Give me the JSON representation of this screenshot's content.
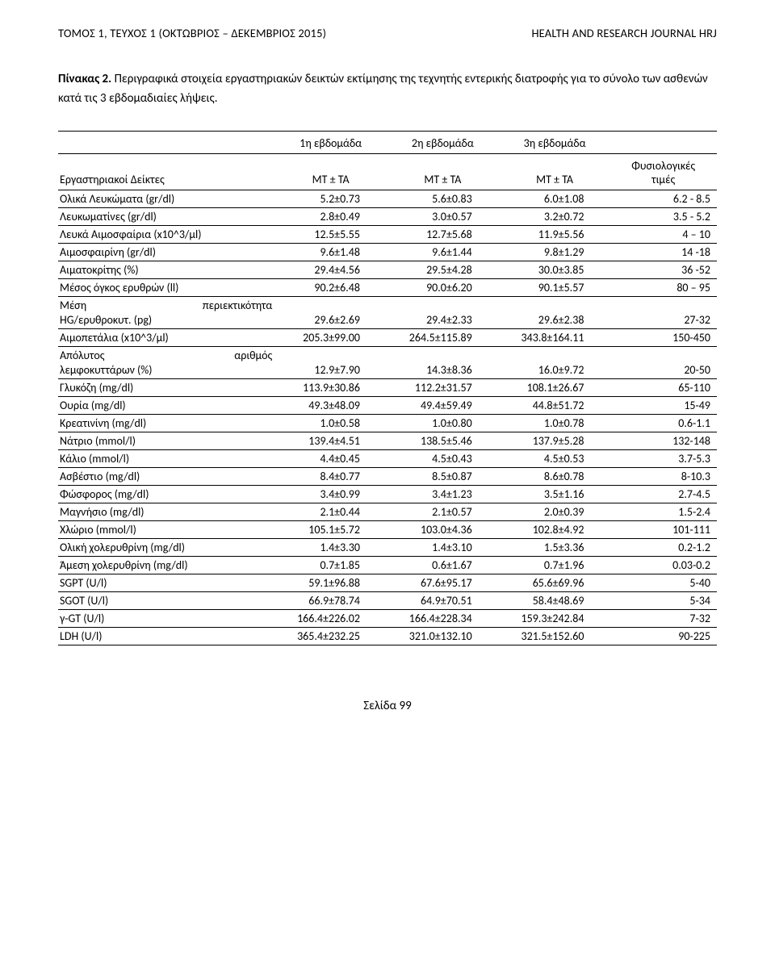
{
  "header": {
    "left": "ΤΟΜΟΣ 1, ΤΕΥΧΟΣ 1 (ΟΚΤΩΒΡΙΟΣ – ΔΕΚΕΜΒΡΙΟΣ 2015)",
    "right": "HEALTH AND RESEARCH JOURNAL HRJ"
  },
  "caption": {
    "title": "Πίνακας 2.",
    "text": " Περιγραφικά στοιχεία εργαστηριακών δεικτών εκτίμησης της τεχνητής εντερικής διατροφής για το σύνολο των ασθενών κατά τις 3 εβδομαδιαίες λήψεις."
  },
  "table": {
    "head1": {
      "c1": "1η εβδομάδα",
      "c2": "2η εβδομάδα",
      "c3": "3η εβδομάδα",
      "c4": ""
    },
    "head2": {
      "c0": "Εργαστηριακοί Δείκτες",
      "c1": "ΜΤ ± ΤΑ",
      "c2": "ΜΤ ± ΤΑ",
      "c3": "ΜΤ ± ΤΑ",
      "c4a": "Φυσιολογικές",
      "c4b": "τιμές"
    },
    "rows": [
      {
        "label": "Ολικά Λευκώματα (gr/dl)",
        "v1": "5.2±0.73",
        "v2": "5.6±0.83",
        "v3": "6.0±1.08",
        "v4": "6.2 - 8.5"
      },
      {
        "label": "Λευκωματίνες (gr/dl)",
        "v1": "2.8±0.49",
        "v2": "3.0±0.57",
        "v3": "3.2±0.72",
        "v4": "3.5 - 5.2"
      },
      {
        "label": "Λευκά Αιμοσφαίρια (x10^3/μl)",
        "v1": "12.5±5.55",
        "v2": "12.7±5.68",
        "v3": "11.9±5.56",
        "v4": "4 – 10"
      },
      {
        "label": "Αιμοσφαιρίνη (gr/dl)",
        "v1": "9.6±1.48",
        "v2": "9.6±1.44",
        "v3": "9.8±1.29",
        "v4": "14 -18"
      },
      {
        "label": "Αιματοκρίτης (%)",
        "v1": "29.4±4.56",
        "v2": "29.5±4.28",
        "v3": "30.0±3.85",
        "v4": "36 -52"
      },
      {
        "label": "Μέσος όγκος ερυθρών (ll)",
        "v1": "90.2±6.48",
        "v2": "90.0±6.20",
        "v3": "90.1±5.57",
        "v4": "80 – 95"
      },
      {
        "labelA": "Μέση",
        "labelB": "περιεκτικότητα",
        "label2": "HG/ερυθροκυτ. (pg)",
        "v1": "29.6±2.69",
        "v2": "29.4±2.33",
        "v3": "29.6±2.38",
        "v4": "27-32",
        "multi": true
      },
      {
        "label": "Αιμοπετάλια (x10^3/μl)",
        "v1": "205.3±99.00",
        "v2": "264.5±115.89",
        "v3": "343.8±164.11",
        "v4": "150-450"
      },
      {
        "labelA": "Απόλυτος",
        "labelB": "αριθμός",
        "label2": "λεμφοκυττάρων (%)",
        "v1": "12.9±7.90",
        "v2": "14.3±8.36",
        "v3": "16.0±9.72",
        "v4": "20-50",
        "multi": true
      },
      {
        "label": "Γλυκόζη (mg/dl)",
        "v1": "113.9±30.86",
        "v2": "112.2±31.57",
        "v3": "108.1±26.67",
        "v4": "65-110"
      },
      {
        "label": "Ουρία (mg/dl)",
        "v1": "49.3±48.09",
        "v2": "49.4±59.49",
        "v3": "44.8±51.72",
        "v4": "15-49"
      },
      {
        "label": "Κρεατινίνη (mg/dl)",
        "v1": "1.0±0.58",
        "v2": "1.0±0.80",
        "v3": "1.0±0.78",
        "v4": "0.6-1.1"
      },
      {
        "label": "Νάτριο (mmol/l)",
        "v1": "139.4±4.51",
        "v2": "138.5±5.46",
        "v3": "137.9±5.28",
        "v4": "132-148"
      },
      {
        "label": "Κάλιο (mmol/l)",
        "v1": "4.4±0.45",
        "v2": "4.5±0.43",
        "v3": "4.5±0.53",
        "v4": "3.7-5.3"
      },
      {
        "label": "Ασβέστιο (mg/dl)",
        "v1": "8.4±0.77",
        "v2": "8.5±0.87",
        "v3": "8.6±0.78",
        "v4": "8-10.3"
      },
      {
        "label": "Φώσφορος (mg/dl)",
        "v1": "3.4±0.99",
        "v2": "3.4±1.23",
        "v3": "3.5±1.16",
        "v4": "2.7-4.5"
      },
      {
        "label": "Μαγνήσιο (mg/dl)",
        "v1": "2.1±0.44",
        "v2": "2.1±0.57",
        "v3": "2.0±0.39",
        "v4": "1.5-2.4"
      },
      {
        "label": "Χλώριο (mmol/l)",
        "v1": "105.1±5.72",
        "v2": "103.0±4.36",
        "v3": "102.8±4.92",
        "v4": "101-111"
      },
      {
        "label": "Ολική χολερυθρίνη (mg/dl)",
        "v1": "1.4±3.30",
        "v2": "1.4±3.10",
        "v3": "1.5±3.36",
        "v4": "0.2-1.2"
      },
      {
        "label": "Άμεση χολερυθρίνη (mg/dl)",
        "v1": "0.7±1.85",
        "v2": "0.6±1.67",
        "v3": "0.7±1.96",
        "v4": "0.03-0.2"
      },
      {
        "label": "SGPT (U/l)",
        "v1": "59.1±96.88",
        "v2": "67.6±95.17",
        "v3": "65.6±69.96",
        "v4": "5-40"
      },
      {
        "label": "SGOT (U/l)",
        "v1": "66.9±78.74",
        "v2": "64.9±70.51",
        "v3": "58.4±48.69",
        "v4": "5-34"
      },
      {
        "label": "γ-GT (U/l)",
        "v1": "166.4±226.02",
        "v2": "166.4±228.34",
        "v3": "159.3±242.84",
        "v4": "7-32"
      },
      {
        "label": "LDH (U/l)",
        "v1": "365.4±232.25",
        "v2": "321.0±132.10",
        "v3": "321.5±152.60",
        "v4": "90-225"
      }
    ]
  },
  "footer": "Σελίδα 99"
}
